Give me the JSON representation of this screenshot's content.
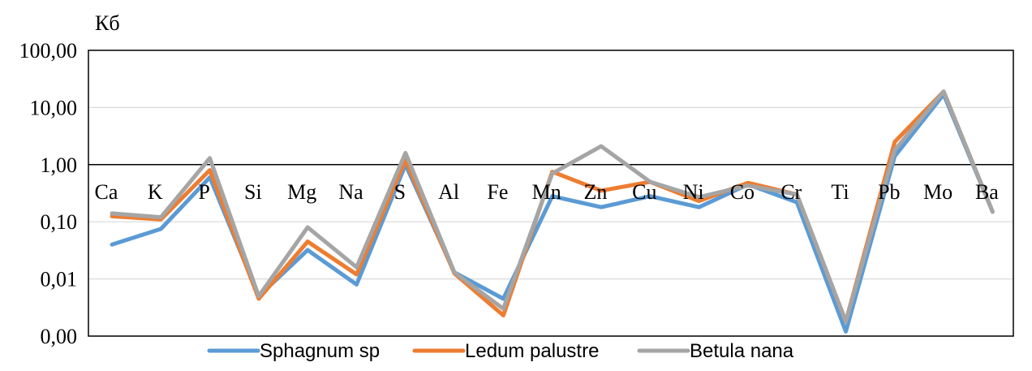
{
  "chart_data": {
    "type": "line",
    "title": "",
    "ylabel": "Кб",
    "xlabel": "",
    "yscale": "log",
    "ylim": [
      0.001,
      100
    ],
    "ytick_values": [
      0.001,
      0.01,
      0.1,
      1,
      10,
      100
    ],
    "ytick_labels": [
      "0,00",
      "0,01",
      "0,10",
      "1,00",
      "10,00",
      "100,00"
    ],
    "reference_line": 1,
    "categories": [
      "Ca",
      "K",
      "P",
      "Si",
      "Mg",
      "Na",
      "S",
      "Al",
      "Fe",
      "Mn",
      "Zn",
      "Cu",
      "Ni",
      "Co",
      "Cr",
      "Ti",
      "Pb",
      "Mo",
      "Ba"
    ],
    "legend_position": "bottom",
    "grid": true,
    "series": [
      {
        "name": "Sphagnum sp",
        "color": "#5B9BD5",
        "values": [
          0.04,
          0.075,
          0.6,
          0.005,
          0.032,
          0.008,
          1.0,
          0.013,
          0.0045,
          0.28,
          0.18,
          0.28,
          0.18,
          0.45,
          0.22,
          0.0012,
          1.4,
          17,
          0.15
        ]
      },
      {
        "name": "Ledum palustre",
        "color": "#ED7D31",
        "values": [
          0.125,
          0.11,
          0.8,
          0.0045,
          0.045,
          0.012,
          1.2,
          0.0125,
          0.0023,
          0.75,
          0.35,
          0.5,
          0.23,
          0.48,
          0.3,
          0.0018,
          2.5,
          19,
          0.15
        ]
      },
      {
        "name": "Betula nana",
        "color": "#A5A5A5",
        "values": [
          0.14,
          0.12,
          1.3,
          0.005,
          0.08,
          0.016,
          1.6,
          0.013,
          0.003,
          0.7,
          2.1,
          0.5,
          0.27,
          0.43,
          0.3,
          0.0018,
          1.8,
          19,
          0.15
        ]
      }
    ]
  }
}
